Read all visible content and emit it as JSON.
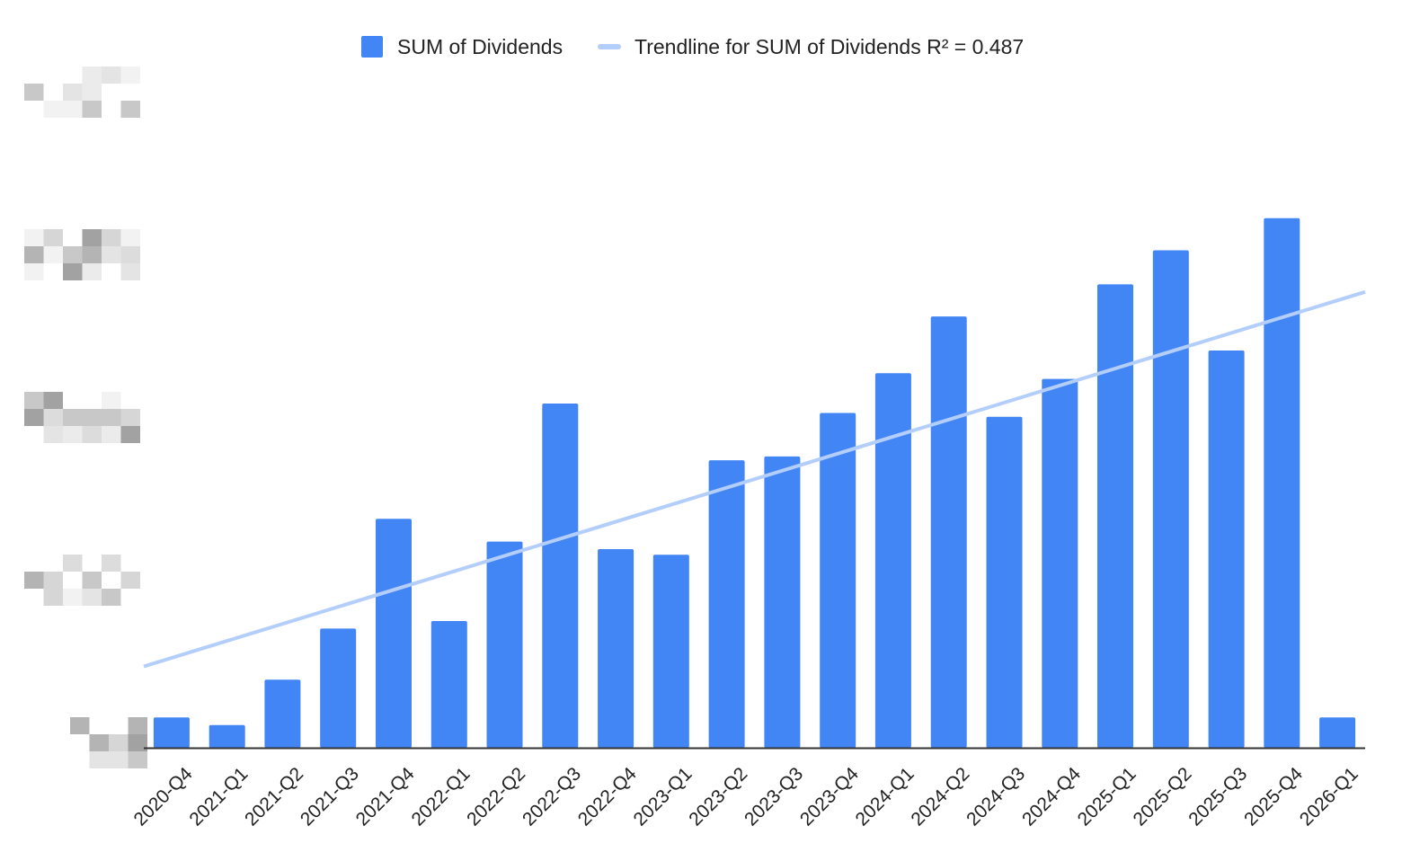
{
  "chart_data": {
    "type": "bar",
    "categories": [
      "2020-Q4",
      "2021-Q1",
      "2021-Q2",
      "2021-Q3",
      "2021-Q4",
      "2022-Q1",
      "2022-Q2",
      "2022-Q3",
      "2022-Q4",
      "2023-Q1",
      "2023-Q2",
      "2023-Q3",
      "2023-Q4",
      "2024-Q1",
      "2024-Q2",
      "2024-Q3",
      "2024-Q4",
      "2025-Q1",
      "2025-Q2",
      "2025-Q3",
      "2025-Q4",
      "2026-Q1"
    ],
    "series": [
      {
        "name": "SUM of Dividends",
        "values": [
          8,
          6,
          18,
          31.5,
          60.5,
          33.5,
          54.5,
          91,
          52.5,
          51,
          76,
          77,
          88.5,
          99,
          114,
          87.5,
          97.5,
          122.5,
          131.5,
          105,
          140,
          8
        ],
        "color": "#4285f4"
      }
    ],
    "trendline": {
      "label": "Trendline for SUM of Dividends R² = 0.487",
      "color": "#b3cefb",
      "start": 21.5,
      "end": 120.5
    },
    "ylim": [
      0,
      172
    ],
    "y_tick_values": [
      0,
      43,
      86,
      129,
      172
    ],
    "y_tick_labels_obscured": true,
    "legend_position": "top",
    "grid": false,
    "baseline_color": "#333333"
  }
}
